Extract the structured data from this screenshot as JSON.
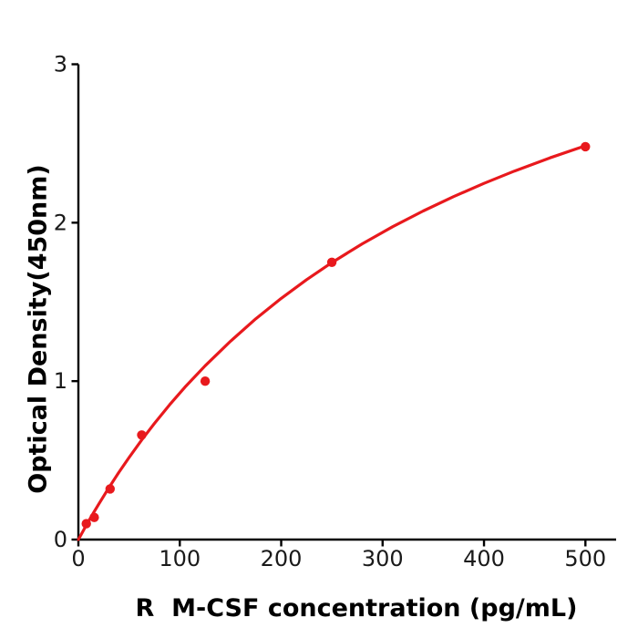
{
  "figure": {
    "background": "#ffffff"
  },
  "chart_data": {
    "type": "scatter",
    "title": "",
    "xlabel": "R  M-CSF concentration (pg/mL)",
    "ylabel": "Optical Density(450nm)",
    "xlim": [
      0,
      500
    ],
    "ylim": [
      0,
      3
    ],
    "x_ticks": [
      0,
      100,
      200,
      300,
      400,
      500
    ],
    "y_ticks": [
      0,
      1,
      2,
      3
    ],
    "grid": false,
    "legend": false,
    "colors": {
      "series": "#e8191d",
      "axis": "#000000",
      "tick_text": "#1a1a1a"
    },
    "series": [
      {
        "name": "standard_points",
        "type": "scatter",
        "marker": "circle",
        "x": [
          7.8,
          15.6,
          31.25,
          62.5,
          125,
          250,
          500
        ],
        "y": [
          0.1,
          0.14,
          0.32,
          0.66,
          1.0,
          1.75,
          2.48
        ]
      },
      {
        "name": "fitted_curve",
        "type": "line",
        "x": [
          0,
          5,
          10,
          15,
          20,
          30,
          40,
          50,
          62.5,
          75,
          90,
          105,
          125,
          150,
          175,
          200,
          225,
          250,
          280,
          310,
          340,
          370,
          400,
          430,
          465,
          500
        ],
        "y": [
          0,
          0.058,
          0.115,
          0.17,
          0.223,
          0.327,
          0.425,
          0.518,
          0.629,
          0.733,
          0.851,
          0.961,
          1.097,
          1.252,
          1.394,
          1.522,
          1.64,
          1.748,
          1.867,
          1.975,
          2.074,
          2.165,
          2.248,
          2.326,
          2.409,
          2.486
        ]
      }
    ]
  }
}
